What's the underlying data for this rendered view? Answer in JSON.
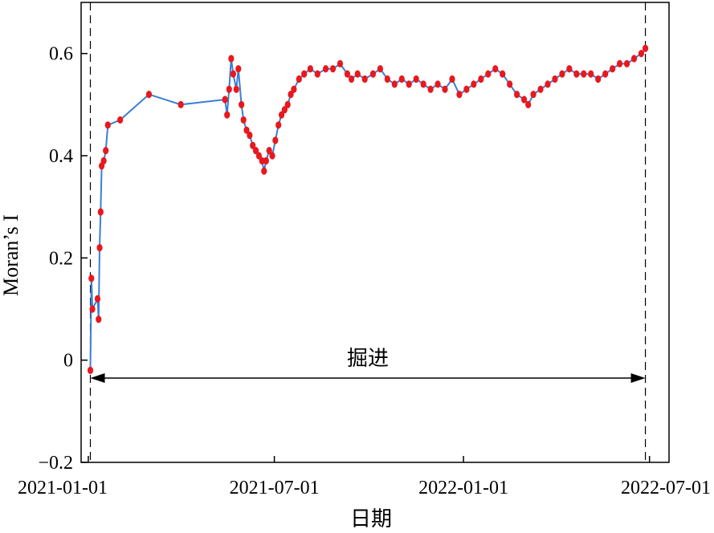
{
  "chart_data": {
    "type": "line",
    "title": "",
    "xlabel": "日期",
    "ylabel": "Moran’s I",
    "x_type": "date",
    "xlim": [
      "2020-12-25",
      "2022-07-20"
    ],
    "ylim": [
      -0.2,
      0.7
    ],
    "x_tick_values": [
      "2021-01-01",
      "2021-07-01",
      "2022-01-01",
      "2022-07-01"
    ],
    "x_tick_labels": [
      "2021-01-01",
      "2021-07-01",
      "2022-01-01",
      "2022-07-01"
    ],
    "y_ticks": [
      -0.2,
      0,
      0.2,
      0.4,
      0.6
    ],
    "y_tick_labels": [
      "−0.2",
      "0",
      "0.2",
      "0.4",
      "0.6"
    ],
    "grid": false,
    "line_color": "#3a7fd5",
    "marker_color": "#e8181e",
    "vlines": [
      "2021-01-03",
      "2022-06-27"
    ],
    "annotation": {
      "text": "掘进",
      "x_start": "2021-01-03",
      "x_end": "2022-06-27",
      "y": -0.035,
      "style": "double-arrow"
    },
    "series": [
      {
        "points": [
          [
            "2021-01-03",
            -0.02
          ],
          [
            "2021-01-04",
            0.16
          ],
          [
            "2021-01-05",
            0.1
          ],
          [
            "2021-01-10",
            0.12
          ],
          [
            "2021-01-11",
            0.08
          ],
          [
            "2021-01-12",
            0.22
          ],
          [
            "2021-01-13",
            0.29
          ],
          [
            "2021-01-14",
            0.38
          ],
          [
            "2021-01-16",
            0.39
          ],
          [
            "2021-01-18",
            0.41
          ],
          [
            "2021-01-20",
            0.46
          ],
          [
            "2021-02-01",
            0.47
          ],
          [
            "2021-03-01",
            0.52
          ],
          [
            "2021-04-01",
            0.5
          ],
          [
            "2021-05-14",
            0.51
          ],
          [
            "2021-05-16",
            0.48
          ],
          [
            "2021-05-18",
            0.53
          ],
          [
            "2021-05-20",
            0.59
          ],
          [
            "2021-05-22",
            0.56
          ],
          [
            "2021-05-25",
            0.53
          ],
          [
            "2021-05-27",
            0.57
          ],
          [
            "2021-05-30",
            0.5
          ],
          [
            "2021-06-01",
            0.47
          ],
          [
            "2021-06-04",
            0.45
          ],
          [
            "2021-06-07",
            0.44
          ],
          [
            "2021-06-10",
            0.42
          ],
          [
            "2021-06-13",
            0.41
          ],
          [
            "2021-06-16",
            0.4
          ],
          [
            "2021-06-19",
            0.39
          ],
          [
            "2021-06-21",
            0.37
          ],
          [
            "2021-06-23",
            0.39
          ],
          [
            "2021-06-26",
            0.41
          ],
          [
            "2021-06-29",
            0.4
          ],
          [
            "2021-07-02",
            0.43
          ],
          [
            "2021-07-05",
            0.46
          ],
          [
            "2021-07-08",
            0.48
          ],
          [
            "2021-07-11",
            0.49
          ],
          [
            "2021-07-14",
            0.5
          ],
          [
            "2021-07-17",
            0.52
          ],
          [
            "2021-07-20",
            0.53
          ],
          [
            "2021-07-25",
            0.55
          ],
          [
            "2021-07-30",
            0.56
          ],
          [
            "2021-08-05",
            0.57
          ],
          [
            "2021-08-12",
            0.56
          ],
          [
            "2021-08-20",
            0.57
          ],
          [
            "2021-08-27",
            0.57
          ],
          [
            "2021-09-03",
            0.58
          ],
          [
            "2021-09-10",
            0.56
          ],
          [
            "2021-09-14",
            0.55
          ],
          [
            "2021-09-20",
            0.56
          ],
          [
            "2021-09-27",
            0.55
          ],
          [
            "2021-10-05",
            0.56
          ],
          [
            "2021-10-12",
            0.57
          ],
          [
            "2021-10-19",
            0.55
          ],
          [
            "2021-10-26",
            0.54
          ],
          [
            "2021-11-02",
            0.55
          ],
          [
            "2021-11-09",
            0.54
          ],
          [
            "2021-11-16",
            0.55
          ],
          [
            "2021-11-23",
            0.54
          ],
          [
            "2021-11-30",
            0.53
          ],
          [
            "2021-12-07",
            0.54
          ],
          [
            "2021-12-14",
            0.53
          ],
          [
            "2021-12-21",
            0.55
          ],
          [
            "2021-12-28",
            0.52
          ],
          [
            "2022-01-04",
            0.53
          ],
          [
            "2022-01-11",
            0.54
          ],
          [
            "2022-01-18",
            0.55
          ],
          [
            "2022-01-25",
            0.56
          ],
          [
            "2022-02-01",
            0.57
          ],
          [
            "2022-02-08",
            0.56
          ],
          [
            "2022-02-15",
            0.54
          ],
          [
            "2022-02-22",
            0.52
          ],
          [
            "2022-03-01",
            0.51
          ],
          [
            "2022-03-05",
            0.5
          ],
          [
            "2022-03-10",
            0.52
          ],
          [
            "2022-03-17",
            0.53
          ],
          [
            "2022-03-24",
            0.54
          ],
          [
            "2022-03-31",
            0.55
          ],
          [
            "2022-04-07",
            0.56
          ],
          [
            "2022-04-14",
            0.57
          ],
          [
            "2022-04-21",
            0.56
          ],
          [
            "2022-04-28",
            0.56
          ],
          [
            "2022-05-05",
            0.56
          ],
          [
            "2022-05-12",
            0.55
          ],
          [
            "2022-05-19",
            0.56
          ],
          [
            "2022-05-26",
            0.57
          ],
          [
            "2022-06-02",
            0.58
          ],
          [
            "2022-06-09",
            0.58
          ],
          [
            "2022-06-16",
            0.59
          ],
          [
            "2022-06-23",
            0.6
          ],
          [
            "2022-06-27",
            0.61
          ]
        ]
      }
    ]
  }
}
